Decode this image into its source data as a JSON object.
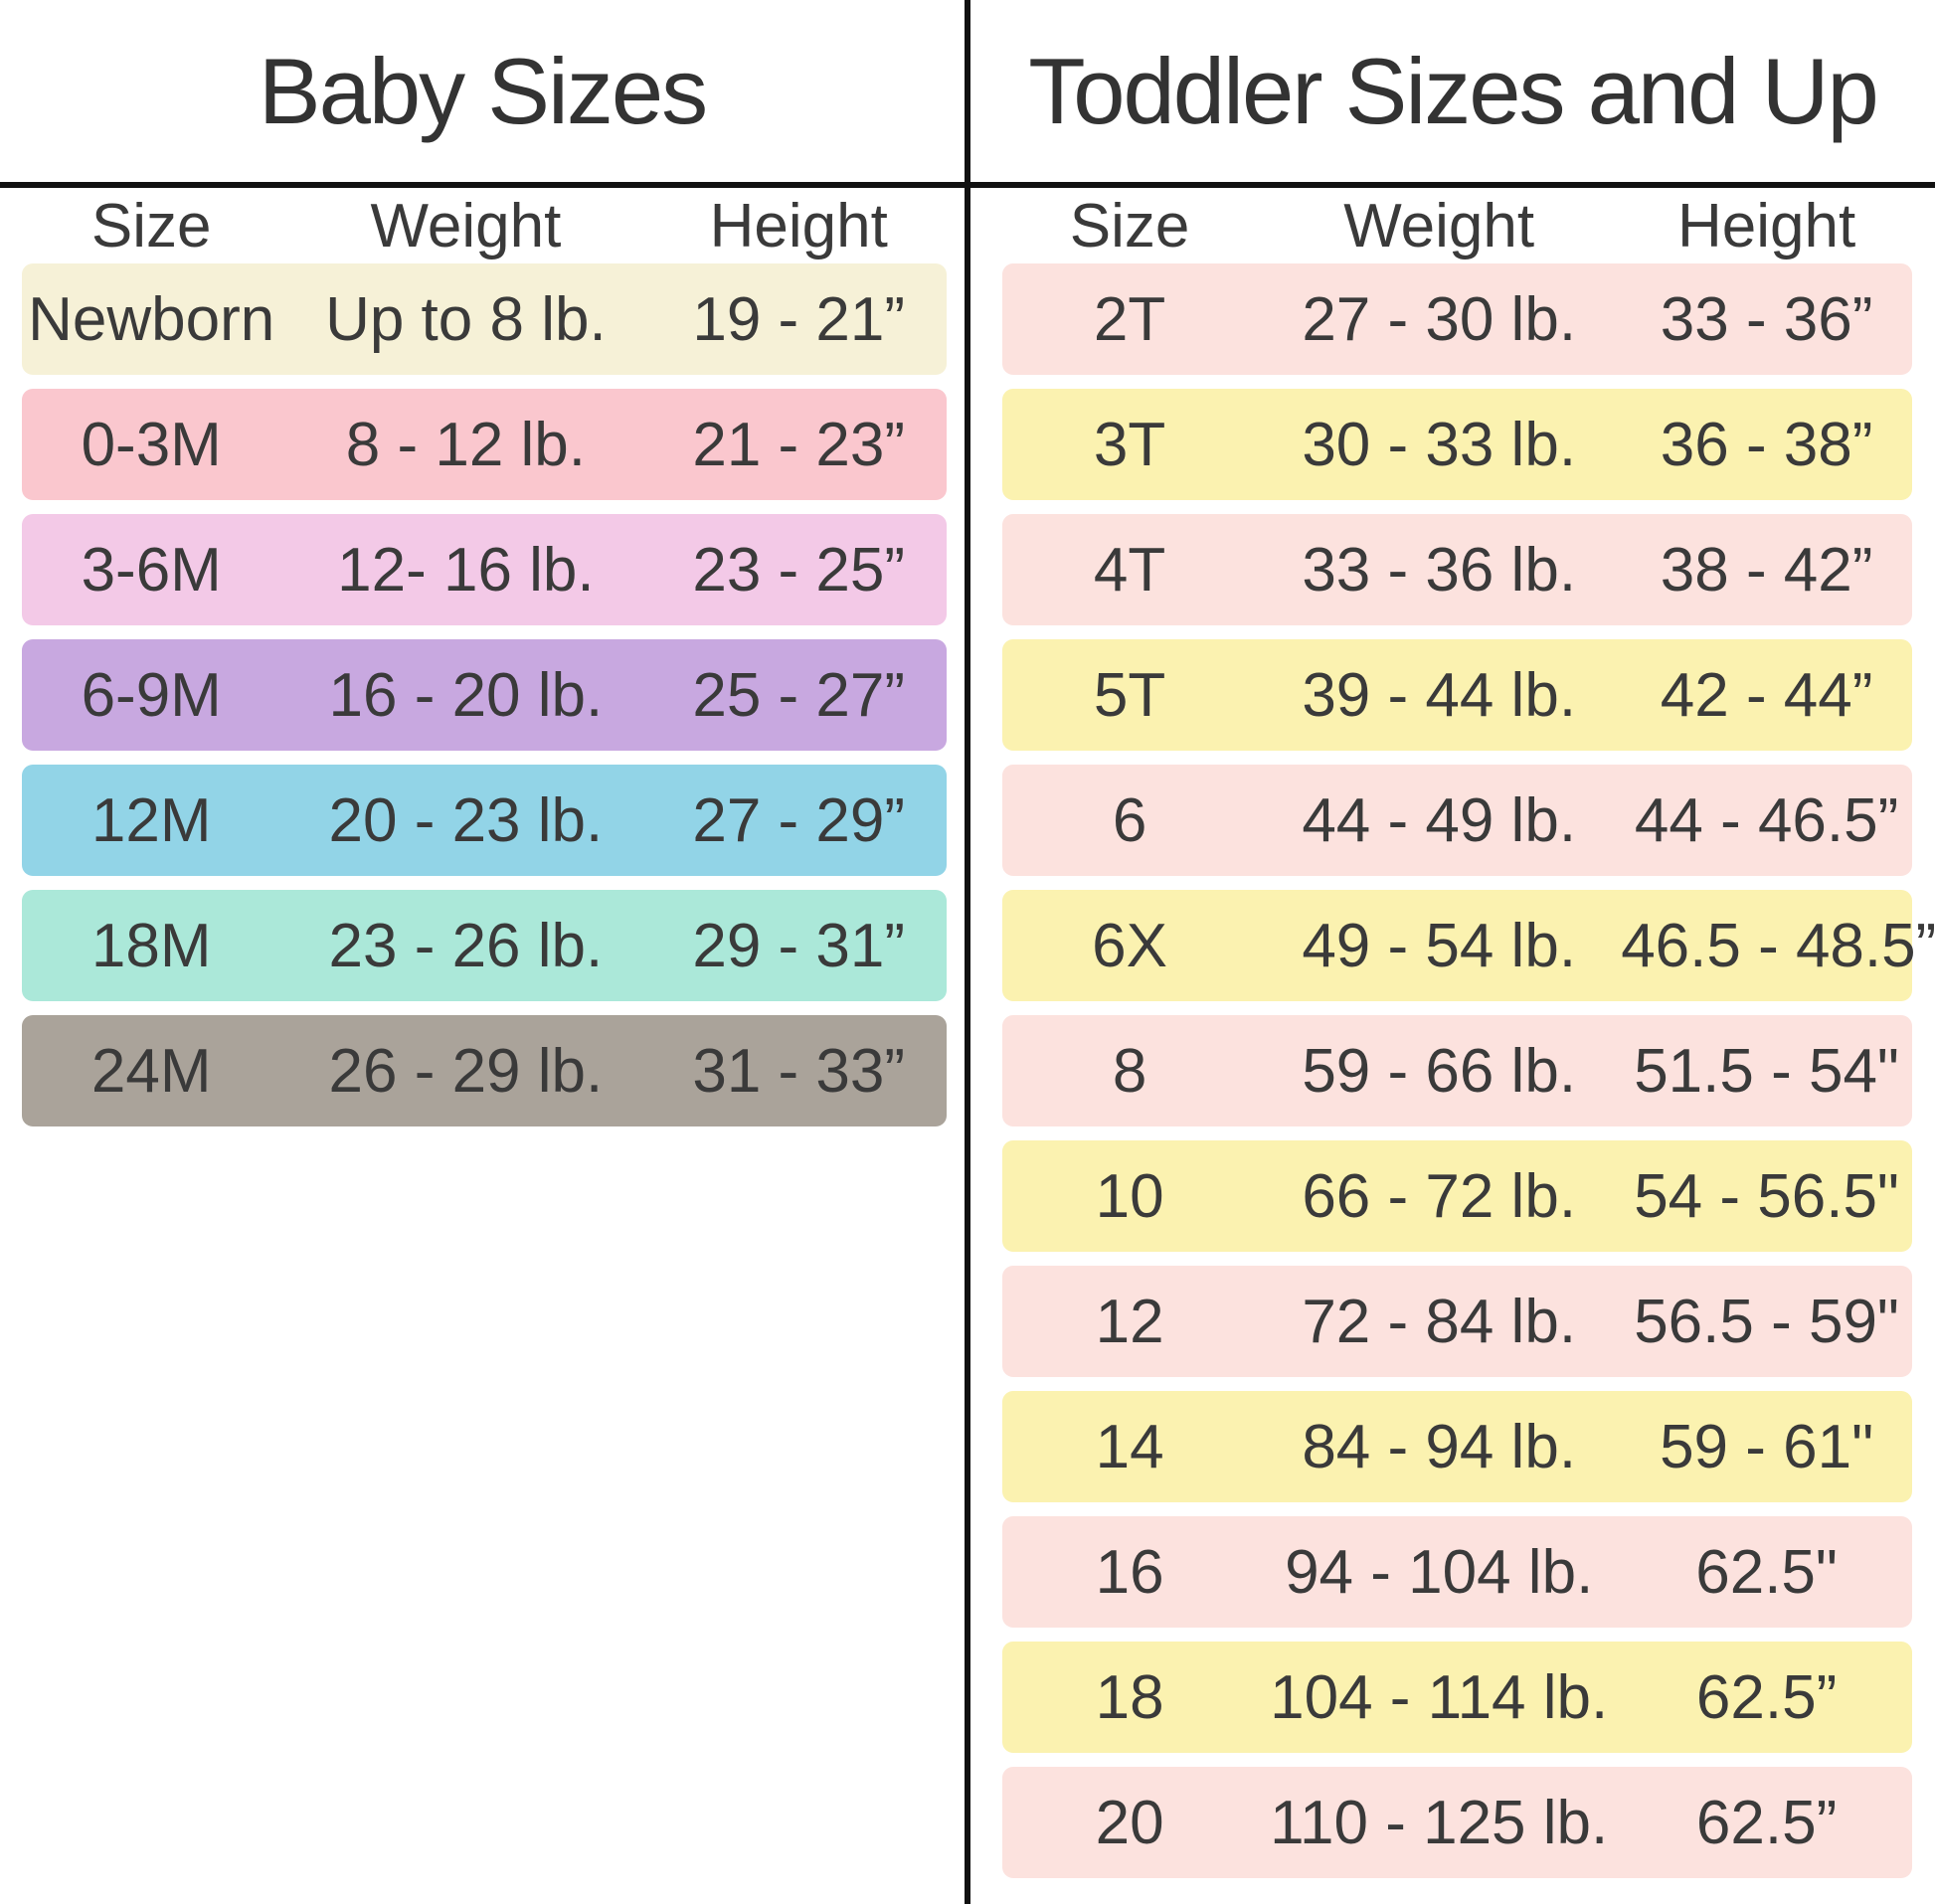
{
  "chart_data": [
    {
      "type": "table",
      "title": "Baby Sizes",
      "columns": [
        "Size",
        "Weight",
        "Height"
      ],
      "rows": [
        {
          "size": "Newborn",
          "weight": "Up to 8 lb.",
          "height": "19 - 21”",
          "row_color": "#f6f1d7"
        },
        {
          "size": "0-3M",
          "weight": "8 - 12 lb.",
          "height": "21 - 23”",
          "row_color": "#fac7ce"
        },
        {
          "size": "3-6M",
          "weight": "12- 16 lb.",
          "height": "23 - 25”",
          "row_color": "#f3c9e7"
        },
        {
          "size": "6-9M",
          "weight": "16 - 20 lb.",
          "height": "25 - 27”",
          "row_color": "#c8a8e0"
        },
        {
          "size": "12M",
          "weight": "20 - 23 lb.",
          "height": "27 - 29”",
          "row_color": "#92d4e7"
        },
        {
          "size": "18M",
          "weight": "23 - 26 lb.",
          "height": "29 - 31”",
          "row_color": "#abe8d9"
        },
        {
          "size": "24M",
          "weight": "26 - 29 lb.",
          "height": "31 - 33”",
          "row_color": "#aaa39a"
        }
      ]
    },
    {
      "type": "table",
      "title": "Toddler Sizes and Up",
      "columns": [
        "Size",
        "Weight",
        "Height"
      ],
      "rows": [
        {
          "size": "2T",
          "weight": "27 - 30 lb.",
          "height": "33 - 36”",
          "row_color": "#fce2de"
        },
        {
          "size": "3T",
          "weight": "30 - 33 lb.",
          "height": "36 - 38”",
          "row_color": "#fbf2b0"
        },
        {
          "size": "4T",
          "weight": "33 - 36 lb.",
          "height": "38 - 42”",
          "row_color": "#fce2de"
        },
        {
          "size": "5T",
          "weight": "39 - 44 lb.",
          "height": "42 - 44”",
          "row_color": "#fbf2b0"
        },
        {
          "size": "6",
          "weight": "44 - 49 lb.",
          "height": "44 - 46.5”",
          "row_color": "#fce2de"
        },
        {
          "size": "6X",
          "weight": "49 - 54 lb.",
          "height": "46.5 - 48.5”",
          "row_color": "#fbf2b0"
        },
        {
          "size": "8",
          "weight": "59 - 66 lb.",
          "height": "51.5 - 54\"",
          "row_color": "#fce2de"
        },
        {
          "size": "10",
          "weight": "66 - 72 lb.",
          "height": "54 - 56.5\"",
          "row_color": "#fbf2b0"
        },
        {
          "size": "12",
          "weight": "72 - 84 lb.",
          "height": "56.5 - 59\"",
          "row_color": "#fce2de"
        },
        {
          "size": "14",
          "weight": "84 - 94 lb.",
          "height": "59 - 61\"",
          "row_color": "#fbf2b0"
        },
        {
          "size": "16",
          "weight": "94 - 104 lb.",
          "height": "62.5\"",
          "row_color": "#fce2de"
        },
        {
          "size": "18",
          "weight": "104 - 114 lb.",
          "height": "62.5”",
          "row_color": "#fbf2b0"
        },
        {
          "size": "20",
          "weight": "110 - 125 lb.",
          "height": "62.5”",
          "row_color": "#fce2de"
        }
      ]
    }
  ],
  "style": {
    "text_color": "#3a3a3a",
    "title_color": "#333333",
    "divider_line_color": "#111111",
    "background_color": "#ffffff"
  }
}
